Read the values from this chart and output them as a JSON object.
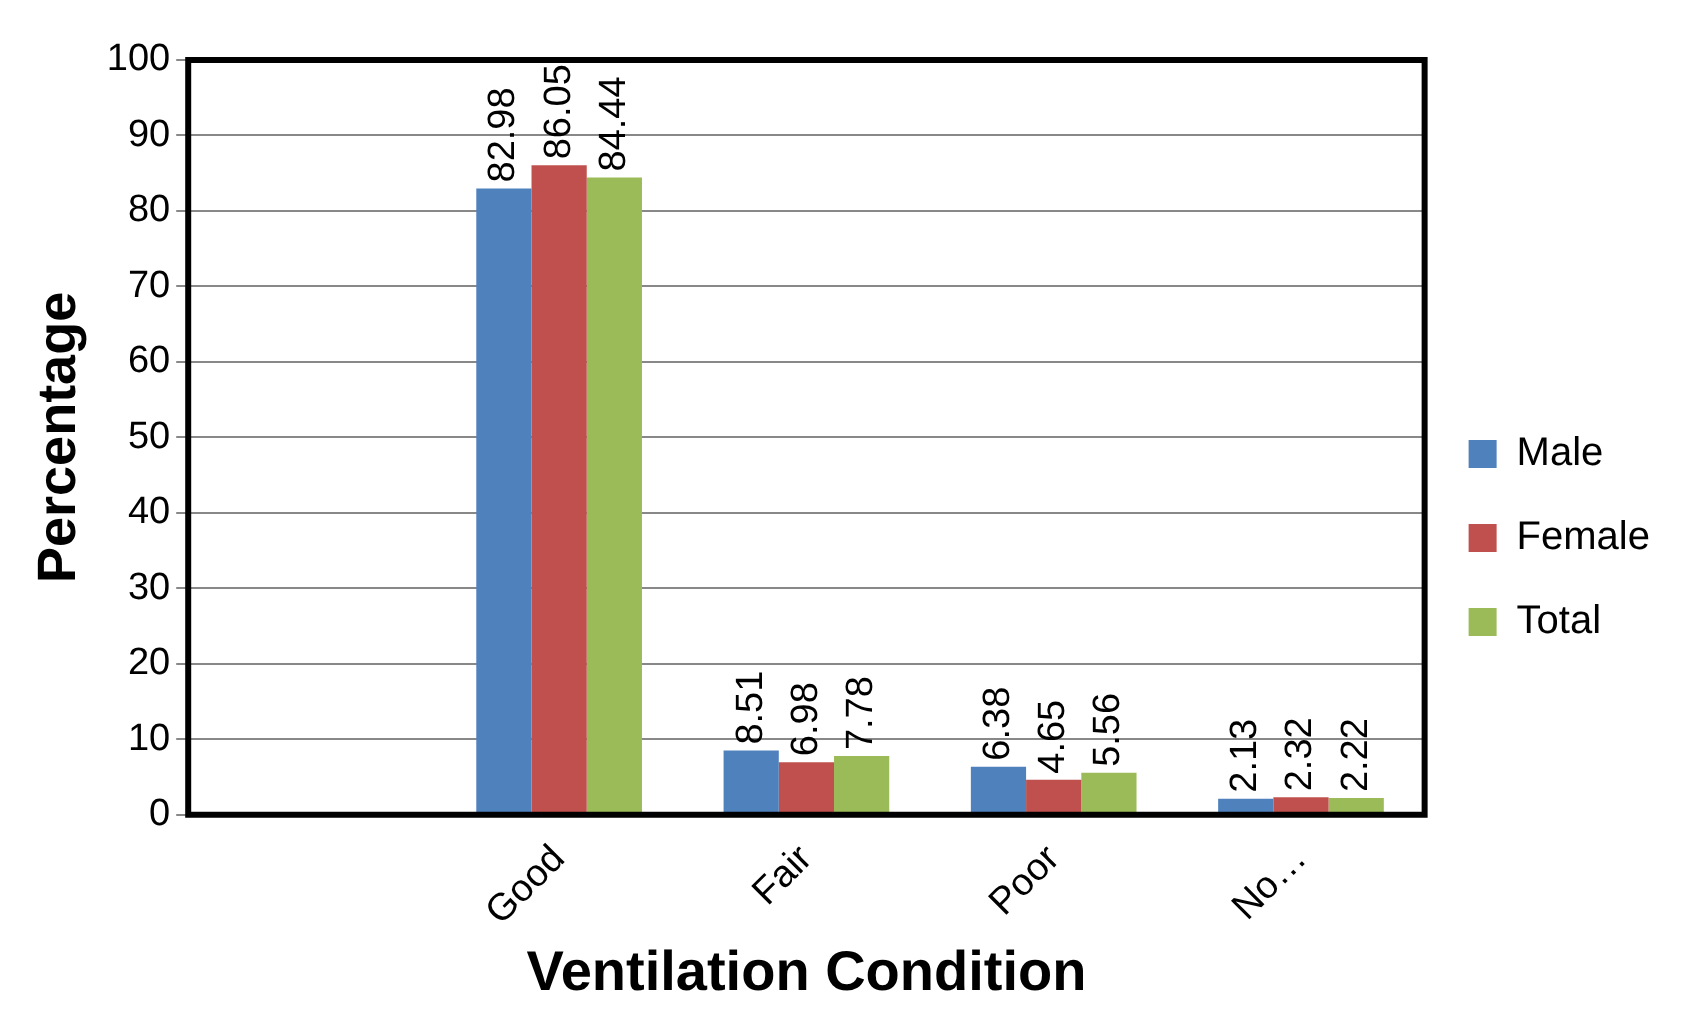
{
  "chart_data": {
    "type": "bar",
    "xlabel": "Ventilation Condition",
    "ylabel": "Percentage",
    "categories": [
      null,
      "Good",
      "Fair",
      "Poor",
      "No…"
    ],
    "series": [
      {
        "name": "Male",
        "color": "#4f81bd",
        "values": [
          null,
          82.98,
          8.51,
          6.38,
          2.13
        ]
      },
      {
        "name": "Female",
        "color": "#c0504d",
        "values": [
          null,
          86.05,
          6.98,
          4.65,
          2.32
        ]
      },
      {
        "name": "Total",
        "color": "#9bbb59",
        "values": [
          null,
          84.44,
          7.78,
          5.56,
          2.22
        ]
      }
    ],
    "ylim": [
      0,
      100
    ],
    "yticks": [
      0,
      10,
      20,
      30,
      40,
      50,
      60,
      70,
      80,
      90,
      100
    ],
    "grid": "y",
    "legend": "right",
    "data_labels": true
  }
}
